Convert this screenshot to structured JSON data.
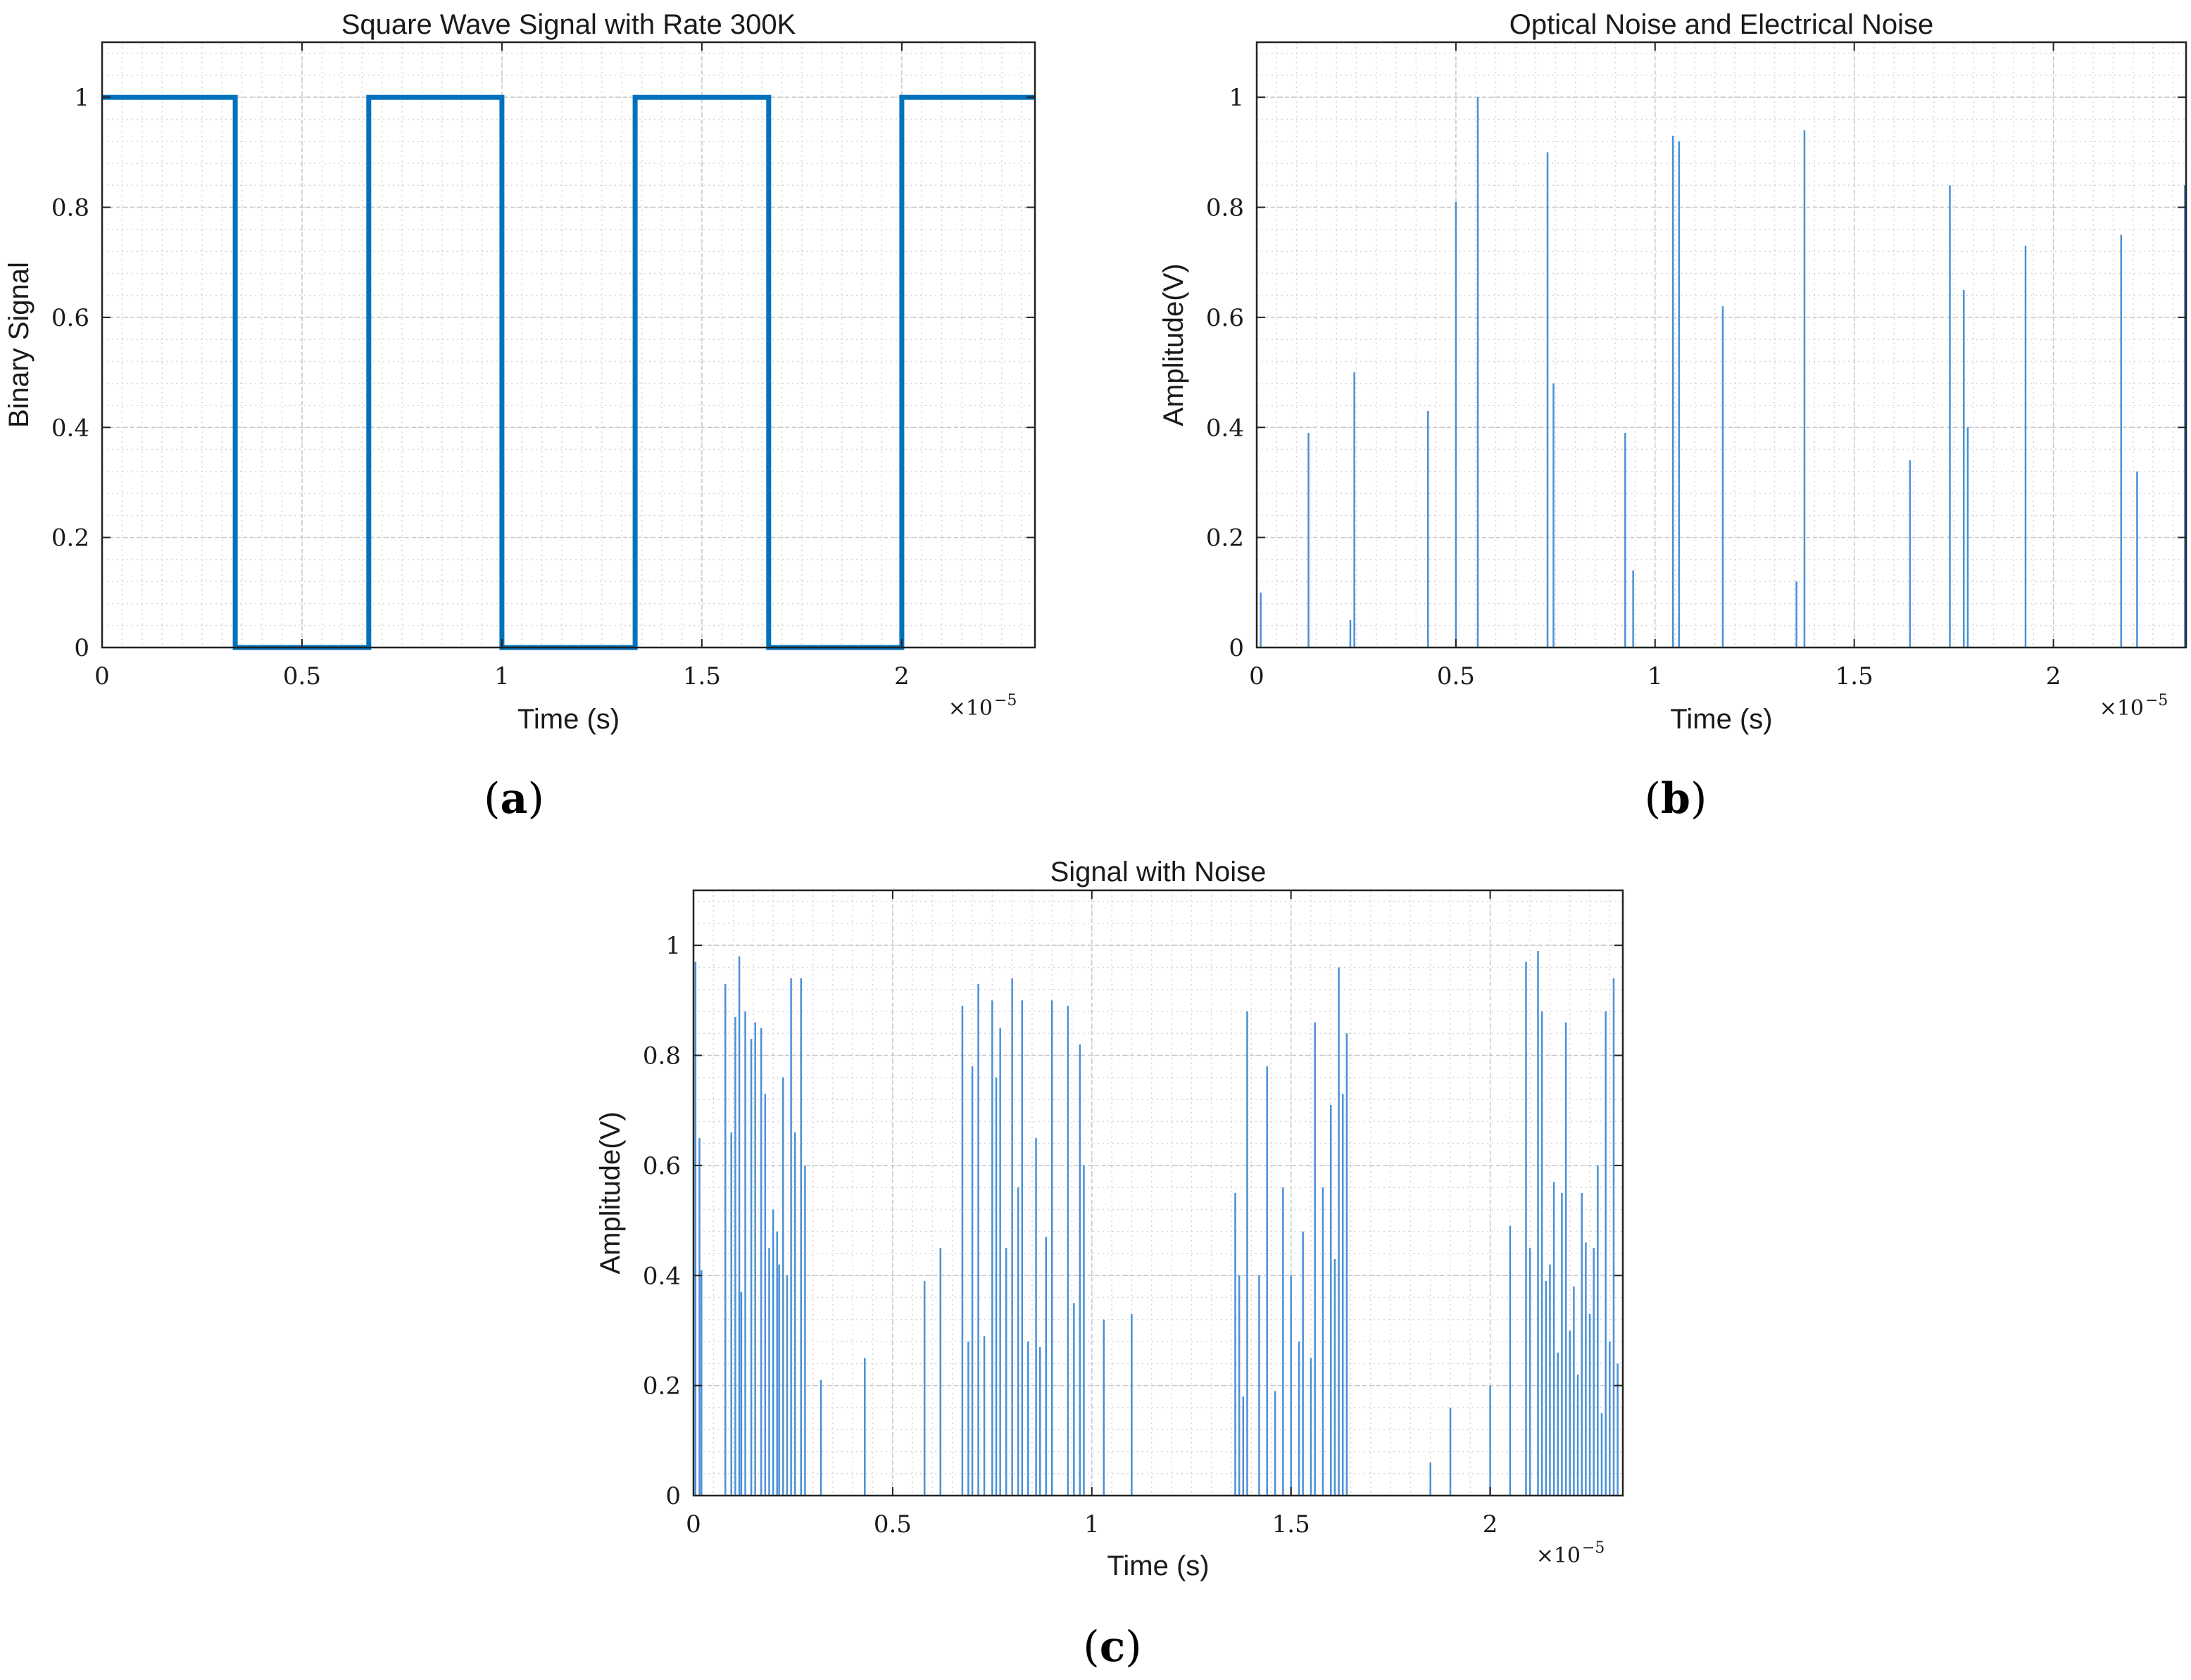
{
  "colors": {
    "line": "#0072BD",
    "stem": "#4a90d9",
    "grid_major": "#c8c8c8",
    "grid_minor": "#d6d6d6",
    "axes": "#222222"
  },
  "chart_data": [
    {
      "id": "a",
      "type": "line",
      "title": "Square Wave Signal with Rate 300K",
      "xlabel": "Time (s)",
      "ylabel": "Binary Signal",
      "x_exponent_base": "×10",
      "x_exponent_power": "−5",
      "xlim": [
        0,
        2.333
      ],
      "ylim": [
        0,
        1.1
      ],
      "xticks": [
        0,
        0.5,
        1,
        1.5,
        2
      ],
      "xtick_labels": [
        "0",
        "0.5",
        "1",
        "1.5",
        "2"
      ],
      "yticks": [
        0,
        0.2,
        0.4,
        0.6,
        0.8,
        1
      ],
      "ytick_labels": [
        "0",
        "0.2",
        "0.4",
        "0.6",
        "0.8",
        "1"
      ],
      "grid": true,
      "caption_letter": "a",
      "series": [
        {
          "name": "Binary Signal",
          "x": [
            0,
            0.333,
            0.333,
            0.667,
            0.667,
            1.0,
            1.0,
            1.333,
            1.333,
            1.667,
            1.667,
            2.0,
            2.0,
            2.333
          ],
          "y": [
            1,
            1,
            0,
            0,
            1,
            1,
            0,
            0,
            1,
            1,
            0,
            0,
            1,
            1
          ]
        }
      ]
    },
    {
      "id": "b",
      "type": "stem",
      "title": "Optical Noise and Electrical Noise",
      "xlabel": "Time (s)",
      "ylabel": "Amplitude(V)",
      "x_exponent_base": "×10",
      "x_exponent_power": "−5",
      "xlim": [
        0,
        2.333
      ],
      "ylim": [
        0,
        1.1
      ],
      "xticks": [
        0,
        0.5,
        1,
        1.5,
        2
      ],
      "xtick_labels": [
        "0",
        "0.5",
        "1",
        "1.5",
        "2"
      ],
      "yticks": [
        0,
        0.2,
        0.4,
        0.6,
        0.8,
        1
      ],
      "ytick_labels": [
        "0",
        "0.2",
        "0.4",
        "0.6",
        "0.8",
        "1"
      ],
      "grid": true,
      "caption_letter": "b",
      "series": [
        {
          "name": "Noise",
          "x": [
            0.01,
            0.13,
            0.235,
            0.245,
            0.43,
            0.5,
            0.555,
            0.73,
            0.745,
            0.925,
            0.945,
            1.045,
            1.06,
            1.17,
            1.355,
            1.375,
            1.64,
            1.74,
            1.775,
            1.785,
            1.93,
            2.17,
            2.21,
            2.33
          ],
          "y": [
            0.1,
            0.39,
            0.05,
            0.5,
            0.43,
            0.81,
            1.0,
            0.9,
            0.48,
            0.39,
            0.14,
            0.93,
            0.92,
            0.62,
            0.12,
            0.94,
            0.34,
            0.84,
            0.65,
            0.4,
            0.73,
            0.75,
            0.32,
            0.84
          ]
        }
      ]
    },
    {
      "id": "c",
      "type": "stem",
      "title": "Signal with Noise",
      "xlabel": "Time (s)",
      "ylabel": "Amplitude(V)",
      "x_exponent_base": "×10",
      "x_exponent_power": "−5",
      "xlim": [
        0,
        2.333
      ],
      "ylim": [
        0,
        1.1
      ],
      "xticks": [
        0,
        0.5,
        1,
        1.5,
        2
      ],
      "xtick_labels": [
        "0",
        "0.5",
        "1",
        "1.5",
        "2"
      ],
      "yticks": [
        0,
        0.2,
        0.4,
        0.6,
        0.8,
        1
      ],
      "ytick_labels": [
        "0",
        "0.2",
        "0.4",
        "0.6",
        "0.8",
        "1"
      ],
      "grid": true,
      "caption_letter": "c",
      "series": [
        {
          "name": "Signal with Noise",
          "x": [
            0.005,
            0.015,
            0.02,
            0.08,
            0.095,
            0.105,
            0.115,
            0.12,
            0.13,
            0.145,
            0.155,
            0.17,
            0.18,
            0.19,
            0.2,
            0.21,
            0.215,
            0.225,
            0.235,
            0.245,
            0.255,
            0.27,
            0.28,
            0.32,
            0.43,
            0.58,
            0.62,
            0.675,
            0.69,
            0.7,
            0.715,
            0.73,
            0.75,
            0.76,
            0.77,
            0.785,
            0.8,
            0.815,
            0.825,
            0.84,
            0.86,
            0.87,
            0.885,
            0.9,
            0.94,
            0.955,
            0.97,
            0.98,
            1.03,
            1.1,
            1.36,
            1.37,
            1.38,
            1.39,
            1.42,
            1.44,
            1.46,
            1.48,
            1.5,
            1.52,
            1.53,
            1.55,
            1.56,
            1.58,
            1.6,
            1.61,
            1.62,
            1.63,
            1.64,
            1.85,
            1.9,
            2.0,
            2.05,
            2.09,
            2.1,
            2.12,
            2.13,
            2.14,
            2.15,
            2.16,
            2.17,
            2.18,
            2.19,
            2.2,
            2.21,
            2.22,
            2.23,
            2.24,
            2.25,
            2.26,
            2.27,
            2.28,
            2.29,
            2.3,
            2.31,
            2.32
          ],
          "y": [
            0.97,
            0.65,
            0.41,
            0.93,
            0.66,
            0.87,
            0.98,
            0.37,
            0.88,
            0.83,
            0.86,
            0.85,
            0.73,
            0.45,
            0.52,
            0.48,
            0.42,
            0.76,
            0.4,
            0.94,
            0.66,
            0.94,
            0.6,
            0.21,
            0.25,
            0.39,
            0.45,
            0.89,
            0.28,
            0.78,
            0.93,
            0.29,
            0.9,
            0.76,
            0.85,
            0.45,
            0.94,
            0.56,
            0.9,
            0.28,
            0.65,
            0.27,
            0.47,
            0.9,
            0.89,
            0.35,
            0.82,
            0.6,
            0.32,
            0.33,
            0.55,
            0.4,
            0.18,
            0.88,
            0.4,
            0.78,
            0.19,
            0.56,
            0.4,
            0.28,
            0.48,
            0.25,
            0.86,
            0.56,
            0.71,
            0.43,
            0.96,
            0.73,
            0.84,
            0.06,
            0.16,
            0.2,
            0.49,
            0.97,
            0.45,
            0.99,
            0.88,
            0.39,
            0.42,
            0.57,
            0.26,
            0.55,
            0.86,
            0.3,
            0.38,
            0.22,
            0.55,
            0.46,
            0.33,
            0.45,
            0.6,
            0.15,
            0.88,
            0.28,
            0.94,
            0.24
          ]
        }
      ]
    }
  ]
}
